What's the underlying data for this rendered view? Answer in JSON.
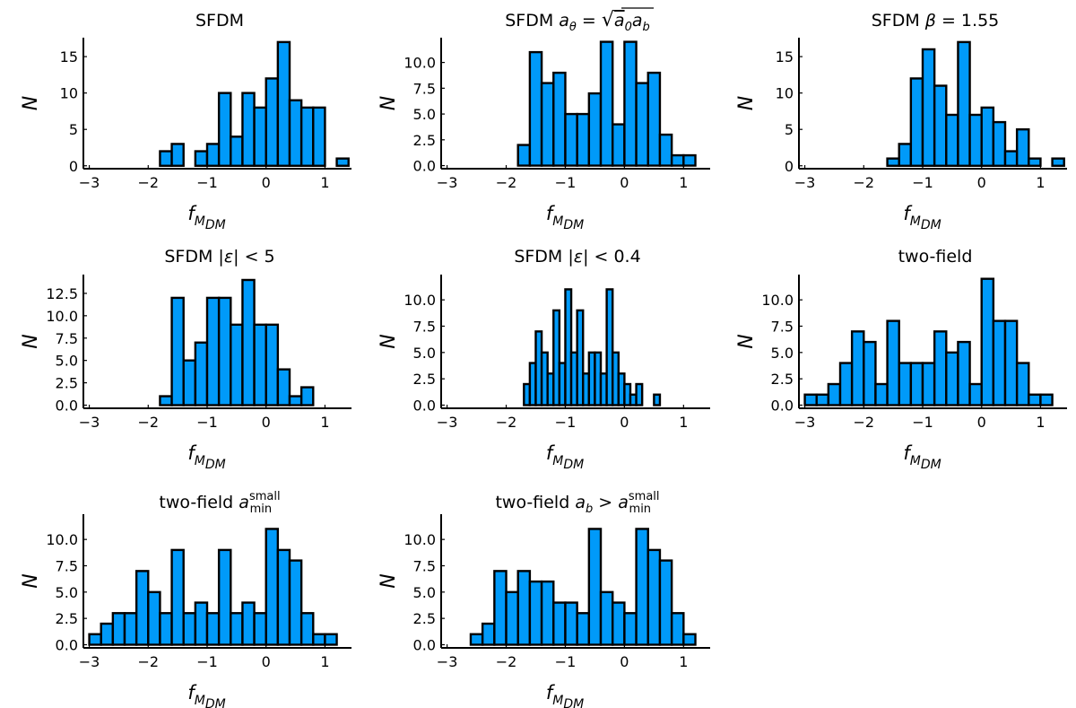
{
  "chart_data": [
    {
      "type": "bar",
      "title": "SFDM",
      "xlabel": "fMDM",
      "ylabel": "N",
      "xlim": [
        -3.1,
        1.45
      ],
      "ylim": [
        -0.4,
        17.6
      ],
      "xticks": [
        -3,
        -2,
        -1,
        0,
        1
      ],
      "xtick_labels": [
        "−3",
        "−2",
        "−1",
        "0",
        "1"
      ],
      "yticks": [
        0,
        5,
        10,
        15
      ],
      "ytick_labels": [
        "0",
        "5",
        "10",
        "15"
      ],
      "bin_width": 0.2,
      "bins": [
        {
          "x": -1.8,
          "n": 2
        },
        {
          "x": -1.6,
          "n": 3
        },
        {
          "x": -1.2,
          "n": 2
        },
        {
          "x": -1.0,
          "n": 3
        },
        {
          "x": -0.8,
          "n": 10
        },
        {
          "x": -0.6,
          "n": 4
        },
        {
          "x": -0.4,
          "n": 10
        },
        {
          "x": -0.2,
          "n": 8
        },
        {
          "x": 0.0,
          "n": 12
        },
        {
          "x": 0.2,
          "n": 17
        },
        {
          "x": 0.4,
          "n": 9
        },
        {
          "x": 0.6,
          "n": 8
        },
        {
          "x": 0.8,
          "n": 8
        },
        {
          "x": 1.2,
          "n": 1
        }
      ]
    },
    {
      "type": "bar",
      "title": "SFDM aθ = √(a0ab)",
      "xlabel": "fMDM",
      "ylabel": "N",
      "xlim": [
        -3.1,
        1.45
      ],
      "ylim": [
        -0.3,
        12.4
      ],
      "xticks": [
        -3,
        -2,
        -1,
        0,
        1
      ],
      "xtick_labels": [
        "−3",
        "−2",
        "−1",
        "0",
        "1"
      ],
      "yticks": [
        0,
        2.5,
        5,
        7.5,
        10
      ],
      "ytick_labels": [
        "0.0",
        "2.5",
        "5.0",
        "7.5",
        "10.0"
      ],
      "bin_width": 0.2,
      "bins": [
        {
          "x": -1.8,
          "n": 2
        },
        {
          "x": -1.6,
          "n": 11
        },
        {
          "x": -1.4,
          "n": 8
        },
        {
          "x": -1.2,
          "n": 9
        },
        {
          "x": -1.0,
          "n": 5
        },
        {
          "x": -0.8,
          "n": 5
        },
        {
          "x": -0.6,
          "n": 7
        },
        {
          "x": -0.4,
          "n": 12
        },
        {
          "x": -0.2,
          "n": 4
        },
        {
          "x": 0.0,
          "n": 12
        },
        {
          "x": 0.2,
          "n": 8
        },
        {
          "x": 0.4,
          "n": 9
        },
        {
          "x": 0.6,
          "n": 3
        },
        {
          "x": 0.8,
          "n": 1
        },
        {
          "x": 1.0,
          "n": 1
        }
      ]
    },
    {
      "type": "bar",
      "title": "SFDM β = 1.55",
      "xlabel": "fMDM",
      "ylabel": "N",
      "xlim": [
        -3.1,
        1.45
      ],
      "ylim": [
        -0.4,
        17.6
      ],
      "xticks": [
        -3,
        -2,
        -1,
        0,
        1
      ],
      "xtick_labels": [
        "−3",
        "−2",
        "−1",
        "0",
        "1"
      ],
      "yticks": [
        0,
        5,
        10,
        15
      ],
      "ytick_labels": [
        "0",
        "5",
        "10",
        "15"
      ],
      "bin_width": 0.2,
      "bins": [
        {
          "x": -1.6,
          "n": 1
        },
        {
          "x": -1.4,
          "n": 3
        },
        {
          "x": -1.2,
          "n": 12
        },
        {
          "x": -1.0,
          "n": 16
        },
        {
          "x": -0.8,
          "n": 11
        },
        {
          "x": -0.6,
          "n": 7
        },
        {
          "x": -0.4,
          "n": 17
        },
        {
          "x": -0.2,
          "n": 7
        },
        {
          "x": 0.0,
          "n": 8
        },
        {
          "x": 0.2,
          "n": 6
        },
        {
          "x": 0.4,
          "n": 2
        },
        {
          "x": 0.6,
          "n": 5
        },
        {
          "x": 0.8,
          "n": 1
        },
        {
          "x": 1.2,
          "n": 1
        }
      ]
    },
    {
      "type": "bar",
      "title": "SFDM |ε| < 5",
      "xlabel": "fMDM",
      "ylabel": "N",
      "xlim": [
        -3.1,
        1.45
      ],
      "ylim": [
        -0.35,
        14.6
      ],
      "xticks": [
        -3,
        -2,
        -1,
        0,
        1
      ],
      "xtick_labels": [
        "−3",
        "−2",
        "−1",
        "0",
        "1"
      ],
      "yticks": [
        0,
        2.5,
        5,
        7.5,
        10,
        12.5
      ],
      "ytick_labels": [
        "0.0",
        "2.5",
        "5.0",
        "7.5",
        "10.0",
        "12.5"
      ],
      "bin_width": 0.2,
      "bins": [
        {
          "x": -1.8,
          "n": 1
        },
        {
          "x": -1.6,
          "n": 12
        },
        {
          "x": -1.4,
          "n": 5
        },
        {
          "x": -1.2,
          "n": 7
        },
        {
          "x": -1.0,
          "n": 12
        },
        {
          "x": -0.8,
          "n": 12
        },
        {
          "x": -0.6,
          "n": 9
        },
        {
          "x": -0.4,
          "n": 14
        },
        {
          "x": -0.2,
          "n": 9
        },
        {
          "x": 0.0,
          "n": 9
        },
        {
          "x": 0.2,
          "n": 4
        },
        {
          "x": 0.4,
          "n": 1
        },
        {
          "x": 0.6,
          "n": 2
        }
      ]
    },
    {
      "type": "bar",
      "title": "SFDM |ε| < 0.4",
      "xlabel": "fMDM",
      "ylabel": "N",
      "xlim": [
        -3.1,
        1.45
      ],
      "ylim": [
        -0.3,
        12.4
      ],
      "xticks": [
        -3,
        -2,
        -1,
        0,
        1
      ],
      "xtick_labels": [
        "−3",
        "−2",
        "−1",
        "0",
        "1"
      ],
      "yticks": [
        0,
        2.5,
        5,
        7.5,
        10
      ],
      "ytick_labels": [
        "0.0",
        "2.5",
        "5.0",
        "7.5",
        "10.0"
      ],
      "bin_width": 0.1,
      "bins": [
        {
          "x": -1.7,
          "n": 2
        },
        {
          "x": -1.6,
          "n": 4
        },
        {
          "x": -1.5,
          "n": 7
        },
        {
          "x": -1.4,
          "n": 5
        },
        {
          "x": -1.3,
          "n": 3
        },
        {
          "x": -1.2,
          "n": 9
        },
        {
          "x": -1.1,
          "n": 4
        },
        {
          "x": -1.0,
          "n": 11
        },
        {
          "x": -0.9,
          "n": 5
        },
        {
          "x": -0.8,
          "n": 9
        },
        {
          "x": -0.7,
          "n": 3
        },
        {
          "x": -0.6,
          "n": 5
        },
        {
          "x": -0.5,
          "n": 5
        },
        {
          "x": -0.4,
          "n": 3
        },
        {
          "x": -0.3,
          "n": 11
        },
        {
          "x": -0.2,
          "n": 5
        },
        {
          "x": -0.1,
          "n": 3
        },
        {
          "x": 0.0,
          "n": 2
        },
        {
          "x": 0.1,
          "n": 1
        },
        {
          "x": 0.2,
          "n": 2
        },
        {
          "x": 0.5,
          "n": 1
        }
      ]
    },
    {
      "type": "bar",
      "title": "two-field",
      "xlabel": "fMDM",
      "ylabel": "N",
      "xlim": [
        -3.1,
        1.45
      ],
      "ylim": [
        -0.3,
        12.4
      ],
      "xticks": [
        -3,
        -2,
        -1,
        0,
        1
      ],
      "xtick_labels": [
        "−3",
        "−2",
        "−1",
        "0",
        "1"
      ],
      "yticks": [
        0,
        2.5,
        5,
        7.5,
        10
      ],
      "ytick_labels": [
        "0.0",
        "2.5",
        "5.0",
        "7.5",
        "10.0"
      ],
      "bin_width": 0.2,
      "bins": [
        {
          "x": -3.0,
          "n": 1
        },
        {
          "x": -2.8,
          "n": 1
        },
        {
          "x": -2.6,
          "n": 2
        },
        {
          "x": -2.4,
          "n": 4
        },
        {
          "x": -2.2,
          "n": 7
        },
        {
          "x": -2.0,
          "n": 6
        },
        {
          "x": -1.8,
          "n": 2
        },
        {
          "x": -1.6,
          "n": 8
        },
        {
          "x": -1.4,
          "n": 4
        },
        {
          "x": -1.2,
          "n": 4
        },
        {
          "x": -1.0,
          "n": 4
        },
        {
          "x": -0.8,
          "n": 7
        },
        {
          "x": -0.6,
          "n": 5
        },
        {
          "x": -0.4,
          "n": 6
        },
        {
          "x": -0.2,
          "n": 2
        },
        {
          "x": 0.0,
          "n": 12
        },
        {
          "x": 0.2,
          "n": 8
        },
        {
          "x": 0.4,
          "n": 8
        },
        {
          "x": 0.6,
          "n": 4
        },
        {
          "x": 0.8,
          "n": 1
        },
        {
          "x": 1.0,
          "n": 1
        }
      ]
    },
    {
      "type": "bar",
      "title": "two-field a_min^small",
      "xlabel": "fMDM",
      "ylabel": "N",
      "xlim": [
        -3.1,
        1.45
      ],
      "ylim": [
        -0.3,
        12.4
      ],
      "xticks": [
        -3,
        -2,
        -1,
        0,
        1
      ],
      "xtick_labels": [
        "−3",
        "−2",
        "−1",
        "0",
        "1"
      ],
      "yticks": [
        0,
        2.5,
        5,
        7.5,
        10
      ],
      "ytick_labels": [
        "0.0",
        "2.5",
        "5.0",
        "7.5",
        "10.0"
      ],
      "bin_width": 0.2,
      "bins": [
        {
          "x": -3.0,
          "n": 1
        },
        {
          "x": -2.8,
          "n": 2
        },
        {
          "x": -2.6,
          "n": 3
        },
        {
          "x": -2.4,
          "n": 3
        },
        {
          "x": -2.2,
          "n": 7
        },
        {
          "x": -2.0,
          "n": 5
        },
        {
          "x": -1.8,
          "n": 3
        },
        {
          "x": -1.6,
          "n": 9
        },
        {
          "x": -1.4,
          "n": 3
        },
        {
          "x": -1.2,
          "n": 4
        },
        {
          "x": -1.0,
          "n": 3
        },
        {
          "x": -0.8,
          "n": 9
        },
        {
          "x": -0.6,
          "n": 3
        },
        {
          "x": -0.4,
          "n": 4
        },
        {
          "x": -0.2,
          "n": 3
        },
        {
          "x": 0.0,
          "n": 11
        },
        {
          "x": 0.2,
          "n": 9
        },
        {
          "x": 0.4,
          "n": 8
        },
        {
          "x": 0.6,
          "n": 3
        },
        {
          "x": 0.8,
          "n": 1
        },
        {
          "x": 1.0,
          "n": 1
        }
      ]
    },
    {
      "type": "bar",
      "title": "two-field ab > a_min^small",
      "xlabel": "fMDM",
      "ylabel": "N",
      "xlim": [
        -3.1,
        1.45
      ],
      "ylim": [
        -0.3,
        12.4
      ],
      "xticks": [
        -3,
        -2,
        -1,
        0,
        1
      ],
      "xtick_labels": [
        "−3",
        "−2",
        "−1",
        "0",
        "1"
      ],
      "yticks": [
        0,
        2.5,
        5,
        7.5,
        10
      ],
      "ytick_labels": [
        "0.0",
        "2.5",
        "5.0",
        "7.5",
        "10.0"
      ],
      "bin_width": 0.2,
      "bins": [
        {
          "x": -2.6,
          "n": 1
        },
        {
          "x": -2.4,
          "n": 2
        },
        {
          "x": -2.2,
          "n": 7
        },
        {
          "x": -2.0,
          "n": 5
        },
        {
          "x": -1.8,
          "n": 7
        },
        {
          "x": -1.6,
          "n": 6
        },
        {
          "x": -1.4,
          "n": 6
        },
        {
          "x": -1.2,
          "n": 4
        },
        {
          "x": -1.0,
          "n": 4
        },
        {
          "x": -0.8,
          "n": 3
        },
        {
          "x": -0.6,
          "n": 11
        },
        {
          "x": -0.4,
          "n": 5
        },
        {
          "x": -0.2,
          "n": 4
        },
        {
          "x": 0.0,
          "n": 3
        },
        {
          "x": 0.2,
          "n": 11
        },
        {
          "x": 0.4,
          "n": 9
        },
        {
          "x": 0.6,
          "n": 8
        },
        {
          "x": 0.8,
          "n": 3
        },
        {
          "x": 1.0,
          "n": 1
        }
      ]
    }
  ]
}
